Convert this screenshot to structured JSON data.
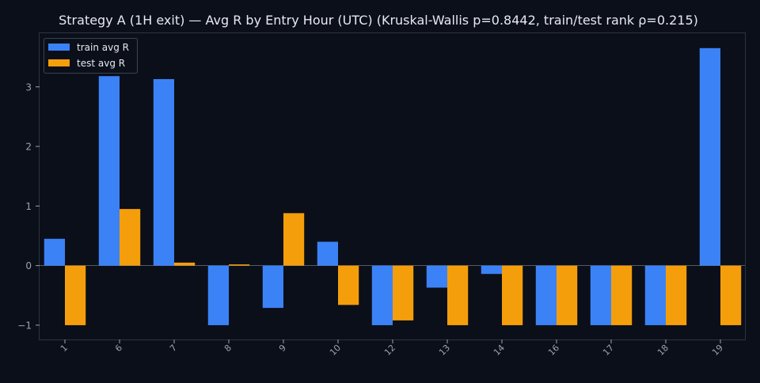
{
  "chart_data": {
    "type": "bar",
    "title": "Strategy A (1H exit) — Avg R by Entry Hour (UTC) (Kruskal-Wallis p=0.8442, train/test rank ρ=0.215)",
    "xlabel": "",
    "ylabel": "",
    "categories": [
      "1",
      "6",
      "7",
      "8",
      "9",
      "10",
      "12",
      "13",
      "14",
      "16",
      "17",
      "18",
      "19"
    ],
    "series": [
      {
        "name": "train avg R",
        "color": "#3b82f6",
        "values": [
          0.45,
          3.18,
          3.13,
          -1.0,
          -0.71,
          0.4,
          -1.0,
          -0.37,
          -0.14,
          -1.0,
          -1.0,
          -1.0,
          3.65
        ]
      },
      {
        "name": "test avg R",
        "color": "#f59e0b",
        "values": [
          -1.0,
          0.95,
          0.05,
          0.02,
          0.88,
          -0.66,
          -0.92,
          -1.0,
          -1.0,
          -1.0,
          -1.0,
          -1.0,
          -1.0
        ]
      }
    ],
    "ylim": [
      -1.24,
      3.9
    ],
    "yticks": [
      -1,
      0,
      1,
      2,
      3
    ],
    "ytick_labels": [
      "−1",
      "0",
      "1",
      "2",
      "3"
    ],
    "grid": false,
    "legend_position": "top-left",
    "colors": {
      "background": "#0b0f19",
      "axes_edge": "#2b3344",
      "text": "#e6e9ef",
      "tick_text": "#9aa3b2",
      "zero_line": "#6b7280"
    }
  }
}
